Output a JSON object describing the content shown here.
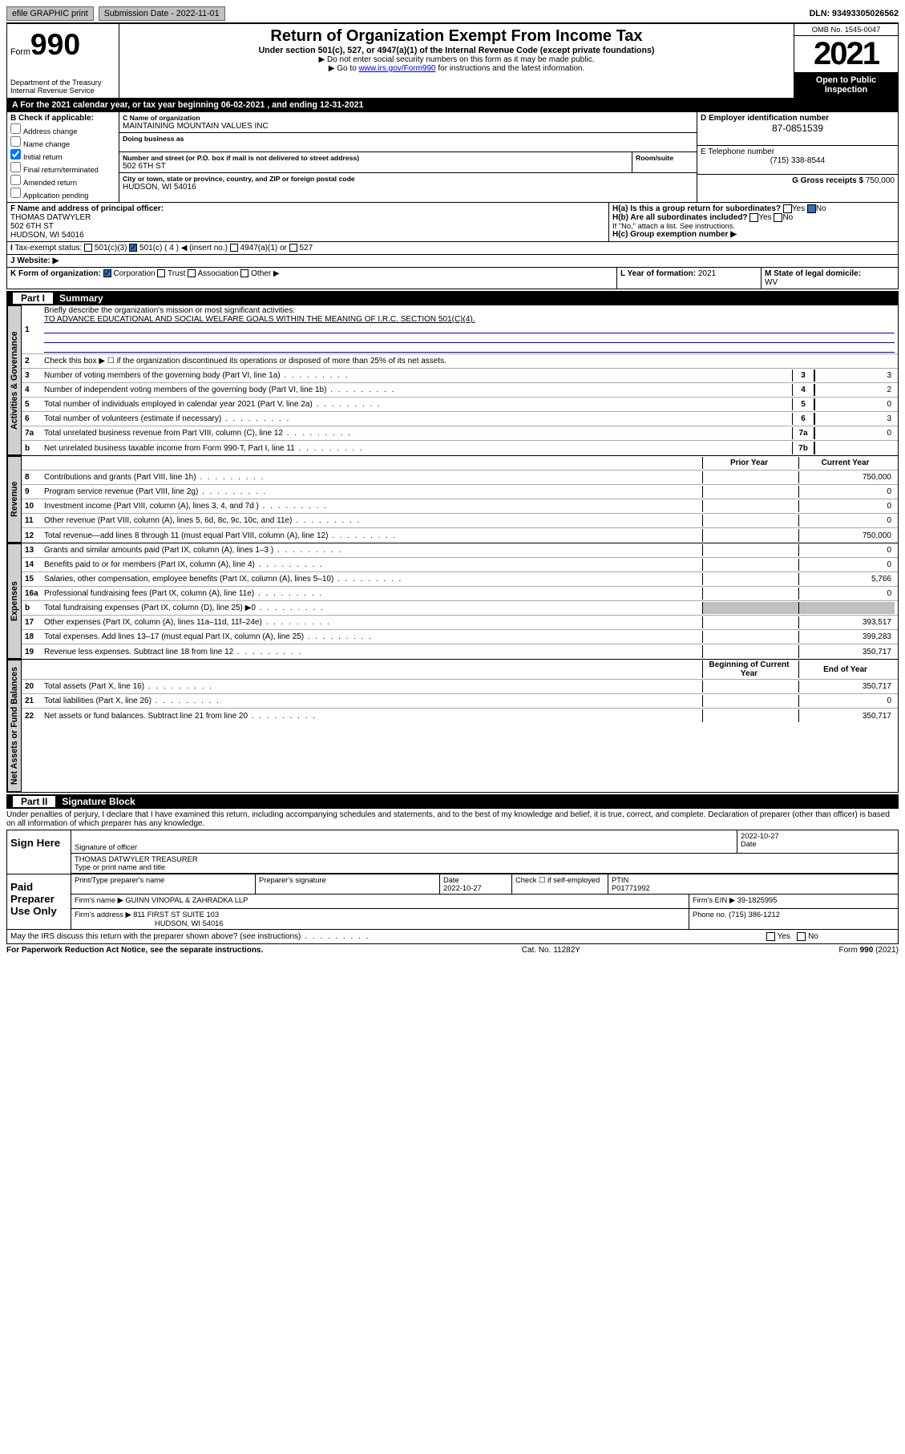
{
  "top_bar": {
    "efile": "efile GRAPHIC print",
    "subm_label": "Submission Date - 2022-11-01",
    "dln": "DLN: 93493305026562"
  },
  "header": {
    "form_label": "Form",
    "form_number": "990",
    "title": "Return of Organization Exempt From Income Tax",
    "sub1": "Under section 501(c), 527, or 4947(a)(1) of the Internal Revenue Code (except private foundations)",
    "sub2": "▶ Do not enter social security numbers on this form as it may be made public.",
    "sub3_pre": "▶ Go to ",
    "sub3_link": "www.irs.gov/Form990",
    "sub3_post": " for instructions and the latest information.",
    "dept1": "Department of the Treasury",
    "dept2": "Internal Revenue Service",
    "omb": "OMB No. 1545-0047",
    "year": "2021",
    "open": "Open to Public Inspection"
  },
  "period": {
    "text": "For the 2021 calendar year, or tax year beginning 06-02-2021   , and ending 12-31-2021"
  },
  "blockA": {
    "B_label": "B Check if applicable:",
    "checks": [
      {
        "label": "Address change",
        "on": false
      },
      {
        "label": "Name change",
        "on": false
      },
      {
        "label": "Initial return",
        "on": true
      },
      {
        "label": "Final return/terminated",
        "on": false
      },
      {
        "label": "Amended return",
        "on": false
      },
      {
        "label": "Application pending",
        "on": false
      }
    ],
    "C_label": "C Name of organization",
    "org_name": "MAINTAINING MOUNTAIN VALUES INC",
    "dba_label": "Doing business as",
    "dba": "",
    "addr_label": "Number and street (or P.O. box if mail is not delivered to street address)",
    "room_label": "Room/suite",
    "street": "502 6TH ST",
    "city_label": "City or town, state or province, country, and ZIP or foreign postal code",
    "city": "HUDSON, WI  54016",
    "D_label": "D Employer identification number",
    "ein": "87-0851539",
    "E_label": "E Telephone number",
    "phone": "(715) 338-8544",
    "G_label": "G Gross receipts $",
    "gross": "750,000",
    "F_label": "F  Name and address of principal officer:",
    "officer_name": "THOMAS DATWYLER",
    "officer_addr1": "502 6TH ST",
    "officer_addr2": "HUDSON, WI  54016",
    "Ha_label": "H(a)  Is this a group return for subordinates?",
    "Ha_yes": "Yes",
    "Ha_no": "No",
    "Hb_label": "H(b)  Are all subordinates included?",
    "Hb_yes": "Yes",
    "Hb_no": "No",
    "Hb_note": "If \"No,\" attach a list. See instructions.",
    "Hc_label": "H(c)  Group exemption number ▶",
    "I_label": "Tax-exempt status:",
    "I_501c3": "501(c)(3)",
    "I_501c": "501(c) ( 4 ) ◀ (insert no.)",
    "I_4947": "4947(a)(1) or",
    "I_527": "527",
    "J_label": "Website: ▶",
    "K_label": "K Form of organization:",
    "K_corp": "Corporation",
    "K_trust": "Trust",
    "K_assoc": "Association",
    "K_other": "Other ▶",
    "L_label": "L Year of formation:",
    "L_val": "2021",
    "M_label": "M State of legal domicile:",
    "M_val": "WV"
  },
  "part1": {
    "title": "Part I",
    "name": "Summary",
    "line1_label": "Briefly describe the organization's mission or most significant activities:",
    "mission": "TO ADVANCE EDUCATIONAL AND SOCIAL WELFARE GOALS WITHIN THE MEANING OF I.R.C. SECTION 501(C)(4).",
    "governance_label": "Activities & Governance",
    "revenue_label": "Revenue",
    "expenses_label": "Expenses",
    "net_label": "Net Assets or Fund Balances",
    "line2": "Check this box ▶ ☐  if the organization discontinued its operations or disposed of more than 25% of its net assets.",
    "rows_gov": [
      {
        "n": "3",
        "t": "Number of voting members of the governing body (Part VI, line 1a)",
        "box": "3",
        "v": "3"
      },
      {
        "n": "4",
        "t": "Number of independent voting members of the governing body (Part VI, line 1b)",
        "box": "4",
        "v": "2"
      },
      {
        "n": "5",
        "t": "Total number of individuals employed in calendar year 2021 (Part V, line 2a)",
        "box": "5",
        "v": "0"
      },
      {
        "n": "6",
        "t": "Total number of volunteers (estimate if necessary)",
        "box": "6",
        "v": "3"
      },
      {
        "n": "7a",
        "t": "Total unrelated business revenue from Part VIII, column (C), line 12",
        "box": "7a",
        "v": "0"
      },
      {
        "n": "b",
        "t": "Net unrelated business taxable income from Form 990-T, Part I, line 11",
        "box": "7b",
        "v": ""
      }
    ],
    "col_prior": "Prior Year",
    "col_curr": "Current Year",
    "rows_rev": [
      {
        "n": "8",
        "t": "Contributions and grants (Part VIII, line 1h)",
        "p": "",
        "c": "750,000"
      },
      {
        "n": "9",
        "t": "Program service revenue (Part VIII, line 2g)",
        "p": "",
        "c": "0"
      },
      {
        "n": "10",
        "t": "Investment income (Part VIII, column (A), lines 3, 4, and 7d )",
        "p": "",
        "c": "0"
      },
      {
        "n": "11",
        "t": "Other revenue (Part VIII, column (A), lines 5, 6d, 8c, 9c, 10c, and 11e)",
        "p": "",
        "c": "0"
      },
      {
        "n": "12",
        "t": "Total revenue—add lines 8 through 11 (must equal Part VIII, column (A), line 12)",
        "p": "",
        "c": "750,000"
      }
    ],
    "rows_exp": [
      {
        "n": "13",
        "t": "Grants and similar amounts paid (Part IX, column (A), lines 1–3 )",
        "p": "",
        "c": "0"
      },
      {
        "n": "14",
        "t": "Benefits paid to or for members (Part IX, column (A), line 4)",
        "p": "",
        "c": "0"
      },
      {
        "n": "15",
        "t": "Salaries, other compensation, employee benefits (Part IX, column (A), lines 5–10)",
        "p": "",
        "c": "5,766"
      },
      {
        "n": "16a",
        "t": "Professional fundraising fees (Part IX, column (A), line 11e)",
        "p": "",
        "c": "0"
      },
      {
        "n": "b",
        "t": "Total fundraising expenses (Part IX, column (D), line 25) ▶0",
        "p": "shade",
        "c": "shade"
      },
      {
        "n": "17",
        "t": "Other expenses (Part IX, column (A), lines 11a–11d, 11f–24e)",
        "p": "",
        "c": "393,517"
      },
      {
        "n": "18",
        "t": "Total expenses. Add lines 13–17 (must equal Part IX, column (A), line 25)",
        "p": "",
        "c": "399,283"
      },
      {
        "n": "19",
        "t": "Revenue less expenses. Subtract line 18 from line 12",
        "p": "",
        "c": "350,717"
      }
    ],
    "col_beg": "Beginning of Current Year",
    "col_end": "End of Year",
    "rows_net": [
      {
        "n": "20",
        "t": "Total assets (Part X, line 16)",
        "p": "",
        "c": "350,717"
      },
      {
        "n": "21",
        "t": "Total liabilities (Part X, line 26)",
        "p": "",
        "c": "0"
      },
      {
        "n": "22",
        "t": "Net assets or fund balances. Subtract line 21 from line 20",
        "p": "",
        "c": "350,717"
      }
    ]
  },
  "part2": {
    "title": "Part II",
    "name": "Signature Block",
    "declaration": "Under penalties of perjury, I declare that I have examined this return, including accompanying schedules and statements, and to the best of my knowledge and belief, it is true, correct, and complete. Declaration of preparer (other than officer) is based on all information of which preparer has any knowledge.",
    "sign_here": "Sign Here",
    "sig_officer_label": "Signature of officer",
    "sig_date_label": "Date",
    "sig_date": "2022-10-27",
    "officer_print": "THOMAS DATWYLER  TREASURER",
    "print_label": "Type or print name and title",
    "paid_label": "Paid Preparer Use Only",
    "pp_name_label": "Print/Type preparer's name",
    "pp_sig_label": "Preparer's signature",
    "pp_date_label": "Date",
    "pp_date": "2022-10-27",
    "pp_check_label": "Check ☐ if self-employed",
    "ptin_label": "PTIN",
    "ptin": "P01771992",
    "firm_name_label": "Firm's name    ▶",
    "firm_name": "GUINN VINOPAL & ZAHRADKA LLP",
    "firm_ein_label": "Firm's EIN ▶",
    "firm_ein": "39-1825995",
    "firm_addr_label": "Firm's address ▶",
    "firm_addr": "811 FIRST ST SUITE 103",
    "firm_city": "HUDSON, WI  54016",
    "firm_phone_label": "Phone no.",
    "firm_phone": "(715) 386-1212",
    "may_irs": "May the IRS discuss this return with the preparer shown above? (see instructions)",
    "may_yes": "Yes",
    "may_no": "No"
  },
  "footer": {
    "pra": "For Paperwork Reduction Act Notice, see the separate instructions.",
    "cat": "Cat. No. 11282Y",
    "form": "Form 990 (2021)"
  }
}
